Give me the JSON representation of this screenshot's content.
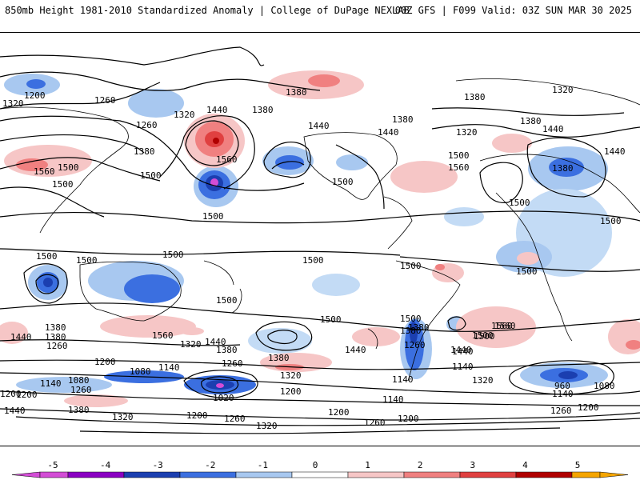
{
  "header": {
    "title": "850mb Height 1981-2010 Standardized Anomaly | College of DuPage NEXLAB",
    "run_info": "00Z GFS | F099 Valid: 03Z SUN MAR 30 2025"
  },
  "map": {
    "contour_labels": [
      {
        "id": "c1",
        "text": "1200"
      },
      {
        "id": "c2",
        "text": "1320"
      },
      {
        "id": "c3",
        "text": "1260"
      },
      {
        "id": "c4",
        "text": "1260"
      },
      {
        "id": "c5",
        "text": "1320"
      },
      {
        "id": "c6",
        "text": "1440"
      },
      {
        "id": "c7",
        "text": "1380"
      },
      {
        "id": "c8",
        "text": "1380"
      },
      {
        "id": "c9",
        "text": "1560"
      },
      {
        "id": "c10",
        "text": "1500"
      },
      {
        "id": "c11",
        "text": "1500"
      },
      {
        "id": "c12",
        "text": "1500"
      },
      {
        "id": "c13",
        "text": "1560"
      },
      {
        "id": "c14",
        "text": "1440"
      },
      {
        "id": "c15",
        "text": "1380"
      },
      {
        "id": "c16",
        "text": "1440"
      },
      {
        "id": "c17",
        "text": "1320"
      },
      {
        "id": "c18",
        "text": "1380"
      },
      {
        "id": "c19",
        "text": "1500"
      },
      {
        "id": "c20",
        "text": "1560"
      },
      {
        "id": "c21",
        "text": "1380"
      },
      {
        "id": "c22",
        "text": "1440"
      },
      {
        "id": "c23",
        "text": "1380"
      },
      {
        "id": "c24",
        "text": "1320"
      },
      {
        "id": "c25",
        "text": "1440"
      },
      {
        "id": "c26",
        "text": "1500"
      },
      {
        "id": "c27",
        "text": "1500"
      },
      {
        "id": "c28",
        "text": "1500"
      },
      {
        "id": "c29",
        "text": "1500"
      },
      {
        "id": "c30",
        "text": "1500"
      },
      {
        "id": "c31",
        "text": "1500"
      },
      {
        "id": "c32",
        "text": "1500"
      },
      {
        "id": "c33",
        "text": "1500"
      },
      {
        "id": "c34",
        "text": "1500"
      },
      {
        "id": "c35",
        "text": "1500"
      },
      {
        "id": "c36",
        "text": "1560"
      },
      {
        "id": "c37",
        "text": "1500"
      },
      {
        "id": "c38",
        "text": "1440"
      },
      {
        "id": "c39",
        "text": "1380"
      },
      {
        "id": "c40",
        "text": "1260"
      },
      {
        "id": "c41",
        "text": "1560"
      },
      {
        "id": "c42",
        "text": "1500"
      },
      {
        "id": "c43",
        "text": "1440"
      },
      {
        "id": "c44",
        "text": "1380"
      },
      {
        "id": "c45",
        "text": "1380"
      },
      {
        "id": "c46",
        "text": "1440"
      },
      {
        "id": "c47",
        "text": "1380"
      },
      {
        "id": "c48",
        "text": "1260"
      },
      {
        "id": "c49",
        "text": "1440"
      },
      {
        "id": "c50",
        "text": "1380"
      },
      {
        "id": "c51",
        "text": "1320"
      },
      {
        "id": "c52",
        "text": "1200"
      },
      {
        "id": "c53",
        "text": "1080"
      },
      {
        "id": "c54",
        "text": "1140"
      },
      {
        "id": "c55",
        "text": "1200"
      },
      {
        "id": "c56",
        "text": "1260"
      },
      {
        "id": "c57",
        "text": "1320"
      },
      {
        "id": "c58",
        "text": "1200"
      },
      {
        "id": "c59",
        "text": "1140"
      },
      {
        "id": "c60",
        "text": "1080"
      },
      {
        "id": "c61",
        "text": "1140"
      },
      {
        "id": "c62",
        "text": "1020"
      },
      {
        "id": "c63",
        "text": "1260"
      },
      {
        "id": "c64",
        "text": "1200"
      },
      {
        "id": "c65",
        "text": "1440"
      },
      {
        "id": "c66",
        "text": "1380"
      },
      {
        "id": "c67",
        "text": "1320"
      },
      {
        "id": "c68",
        "text": "1200"
      },
      {
        "id": "c69",
        "text": "1260"
      },
      {
        "id": "c70",
        "text": "1320"
      },
      {
        "id": "c71",
        "text": "1200"
      },
      {
        "id": "c72",
        "text": "1260"
      },
      {
        "id": "c73",
        "text": "1140"
      },
      {
        "id": "c74",
        "text": "1140"
      },
      {
        "id": "c75",
        "text": "1200"
      },
      {
        "id": "c76",
        "text": "960"
      },
      {
        "id": "c77",
        "text": "1080"
      },
      {
        "id": "c78",
        "text": "1140"
      },
      {
        "id": "c79",
        "text": "1260"
      },
      {
        "id": "c80",
        "text": "1200"
      },
      {
        "id": "c81",
        "text": "1320"
      },
      {
        "id": "c82",
        "text": "1500"
      },
      {
        "id": "c83",
        "text": "1380"
      },
      {
        "id": "c84",
        "text": "1440"
      },
      {
        "id": "c85",
        "text": "1500"
      },
      {
        "id": "c86",
        "text": "1560"
      },
      {
        "id": "c87",
        "text": "1500"
      },
      {
        "id": "c88",
        "text": "1380"
      }
    ]
  },
  "colorbar": {
    "ticks": [
      "-5",
      "-4",
      "-3",
      "-2",
      "-1",
      "0",
      "1",
      "2",
      "3",
      "4",
      "5"
    ],
    "colors": [
      "#d34dd6",
      "#8a00c2",
      "#1b3fb0",
      "#3b6fe0",
      "#a8c8f0",
      "#ffffff",
      "#f6c6c6",
      "#f08080",
      "#e04040",
      "#b00000",
      "#f5a500"
    ]
  }
}
